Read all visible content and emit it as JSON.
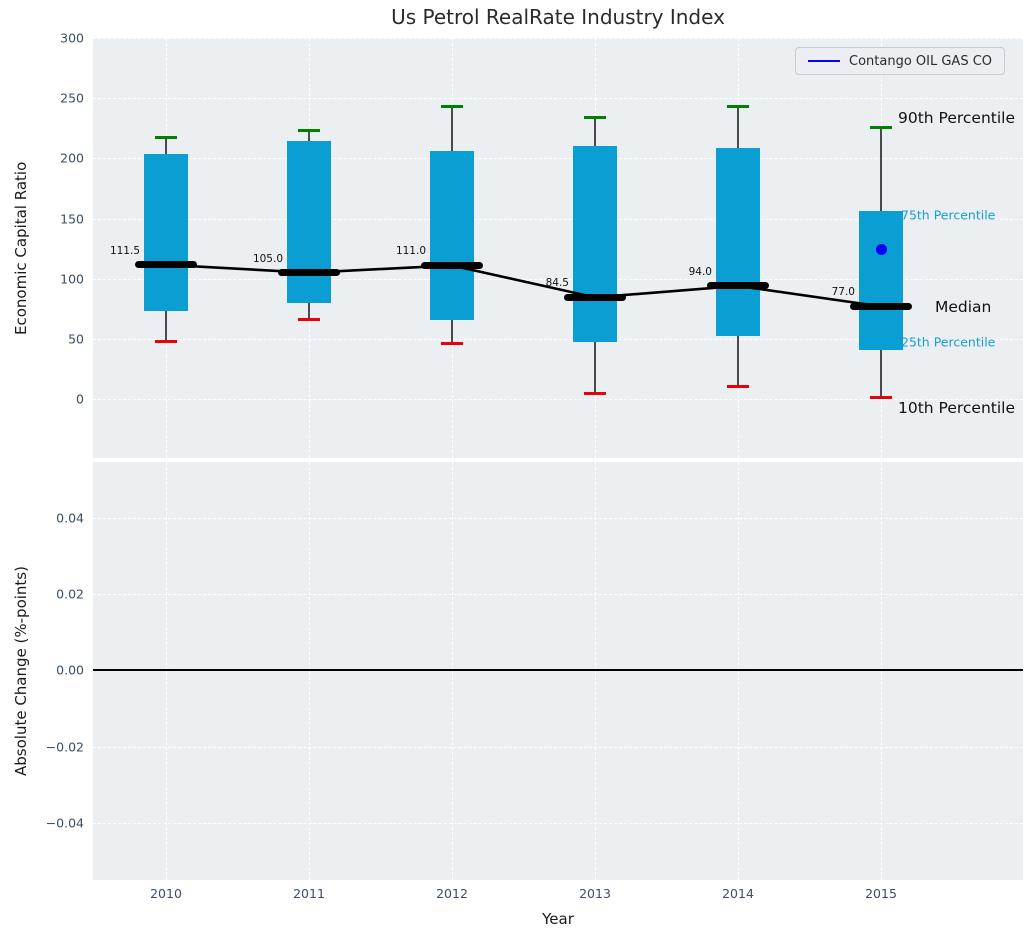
{
  "chart_data": [
    {
      "type": "boxplot",
      "title": "Us Petrol RealRate Industry Index",
      "xlabel": "Year",
      "ylabel": "Economic Capital Ratio",
      "categories": [
        2010,
        2011,
        2012,
        2013,
        2014,
        2015
      ],
      "xtick_labels": [
        "2010",
        "2011",
        "2012",
        "2013",
        "2014",
        "2015"
      ],
      "yticks": [
        0,
        50,
        100,
        150,
        200,
        250,
        300
      ],
      "ytick_labels": [
        "0",
        "50",
        "100",
        "150",
        "200",
        "250",
        "300"
      ],
      "ylim": [
        -49,
        300
      ],
      "grid": true,
      "series": [
        {
          "name": "90th Percentile",
          "values": [
            217,
            223,
            243,
            234,
            243,
            226
          ]
        },
        {
          "name": "75th Percentile",
          "values": [
            204,
            214,
            206,
            210,
            209,
            156
          ]
        },
        {
          "name": "Median",
          "values": [
            111.5,
            105.0,
            111.0,
            84.5,
            94.0,
            77.0
          ]
        },
        {
          "name": "25th Percentile",
          "values": [
            73,
            80,
            66,
            47,
            52,
            41
          ]
        },
        {
          "name": "10th Percentile",
          "values": [
            48,
            66,
            46,
            5,
            10,
            1
          ]
        }
      ],
      "median_labels": [
        "111.5",
        "105.0",
        "111.0",
        "84.5",
        "94.0",
        "77.0"
      ],
      "company_point": {
        "category": 2015,
        "value": 124,
        "label": "Contango OIL GAS CO"
      },
      "percentile_annotations": [
        "90th Percentile",
        "75th Percentile",
        "Median",
        "25th Percentile",
        "10th Percentile"
      ],
      "legend": {
        "position": "upper right",
        "entries": [
          {
            "label": "Contango OIL GAS CO",
            "color": "#0000ff"
          }
        ]
      },
      "colors": {
        "box_fill": "#0a9ed3",
        "cap_90": "#008000",
        "cap_10": "#e8000b",
        "median": "#000000",
        "trend_line": "#000000",
        "company_point": "#0000ff",
        "whisker": "#4a4a4a",
        "axes_background": "#eceff1",
        "annotation_accent": "#189dd3"
      }
    },
    {
      "type": "line",
      "ylabel": "Absolute Change (%-points)",
      "yticks": [
        0.04,
        0.02,
        0.0,
        -0.02,
        -0.04
      ],
      "ytick_labels": [
        "0.04",
        "0.02",
        "0.00",
        "−0.02",
        "−0.04"
      ],
      "ylim": [
        -0.055,
        0.0546
      ],
      "grid": true,
      "zero_line": 0.0,
      "series": []
    }
  ]
}
